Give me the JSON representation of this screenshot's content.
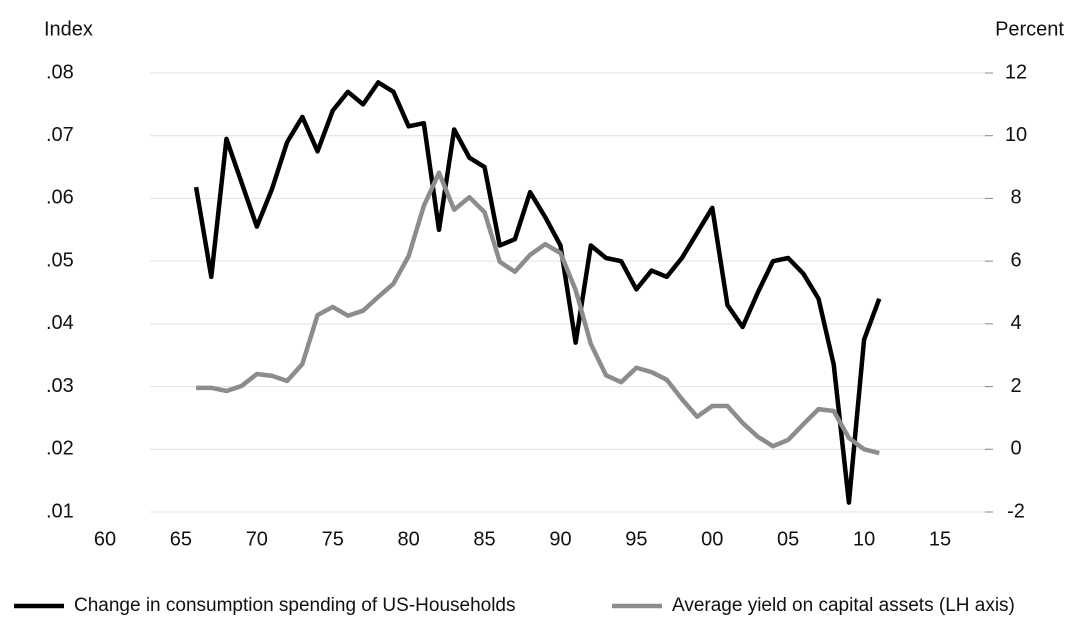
{
  "chart_data": {
    "type": "line",
    "y_label": "Index",
    "y2_label": "Percent",
    "xlim": [
      1960,
      2015
    ],
    "xticks": [
      {
        "value": 1960,
        "label": "60"
      },
      {
        "value": 1965,
        "label": "65"
      },
      {
        "value": 1970,
        "label": "70"
      },
      {
        "value": 1975,
        "label": "75"
      },
      {
        "value": 1980,
        "label": "80"
      },
      {
        "value": 1985,
        "label": "85"
      },
      {
        "value": 1990,
        "label": "90"
      },
      {
        "value": 1995,
        "label": "95"
      },
      {
        "value": 2000,
        "label": "00"
      },
      {
        "value": 2005,
        "label": "05"
      },
      {
        "value": 2010,
        "label": "10"
      },
      {
        "value": 2015,
        "label": "15"
      }
    ],
    "ylim": [
      0.01,
      0.08
    ],
    "yticks": [
      {
        "value": 0.01,
        "label": ".01"
      },
      {
        "value": 0.02,
        "label": ".02"
      },
      {
        "value": 0.03,
        "label": ".03"
      },
      {
        "value": 0.04,
        "label": ".04"
      },
      {
        "value": 0.05,
        "label": ".05"
      },
      {
        "value": 0.06,
        "label": ".06"
      },
      {
        "value": 0.07,
        "label": ".07"
      },
      {
        "value": 0.08,
        "label": ".08"
      }
    ],
    "y2lim": [
      -2,
      12
    ],
    "y2ticks": [
      -2,
      0,
      2,
      4,
      6,
      8,
      10,
      12
    ],
    "grid": true,
    "legend": "bottom",
    "x": [
      1966,
      1967,
      1968,
      1969,
      1970,
      1971,
      1972,
      1973,
      1974,
      1975,
      1976,
      1977,
      1978,
      1979,
      1980,
      1981,
      1982,
      1983,
      1984,
      1985,
      1986,
      1987,
      1988,
      1989,
      1990,
      1991,
      1992,
      1993,
      1994,
      1995,
      1996,
      1997,
      1998,
      1999,
      2000,
      2001,
      2002,
      2003,
      2004,
      2005,
      2006,
      2007,
      2008,
      2009,
      2010,
      2011
    ],
    "series": [
      {
        "name": "Change in consumption spending of US-Households",
        "color": "#000000",
        "axis": "y2",
        "values": [
          8.36,
          5.5,
          9.9,
          8.5,
          7.1,
          8.3,
          9.8,
          10.6,
          9.5,
          10.8,
          11.4,
          11.0,
          11.7,
          11.4,
          10.3,
          10.4,
          7.0,
          10.2,
          9.3,
          9.0,
          6.5,
          6.7,
          8.2,
          7.4,
          6.5,
          3.4,
          6.5,
          6.1,
          6.0,
          5.1,
          5.7,
          5.5,
          6.1,
          6.9,
          7.7,
          4.6,
          3.9,
          5.0,
          6.0,
          6.1,
          5.6,
          4.8,
          2.7,
          -1.7,
          3.5,
          4.8
        ]
      },
      {
        "name": "Average yield on capital assets (LH axis)",
        "color": "#8c8c8c",
        "values": [
          0.0298,
          0.0298,
          0.0293,
          0.0301,
          0.032,
          0.0317,
          0.0309,
          0.0336,
          0.0414,
          0.0427,
          0.0413,
          0.0421,
          0.0443,
          0.0464,
          0.0508,
          0.0588,
          0.0641,
          0.0582,
          0.0602,
          0.0578,
          0.0499,
          0.0483,
          0.051,
          0.0527,
          0.0513,
          0.0454,
          0.0368,
          0.0318,
          0.0307,
          0.033,
          0.0323,
          0.0311,
          0.028,
          0.0252,
          0.0269,
          0.0269,
          0.0242,
          0.022,
          0.0205,
          0.0215,
          0.024,
          0.0264,
          0.0261,
          0.0218,
          0.02,
          0.0194
        ]
      }
    ]
  }
}
